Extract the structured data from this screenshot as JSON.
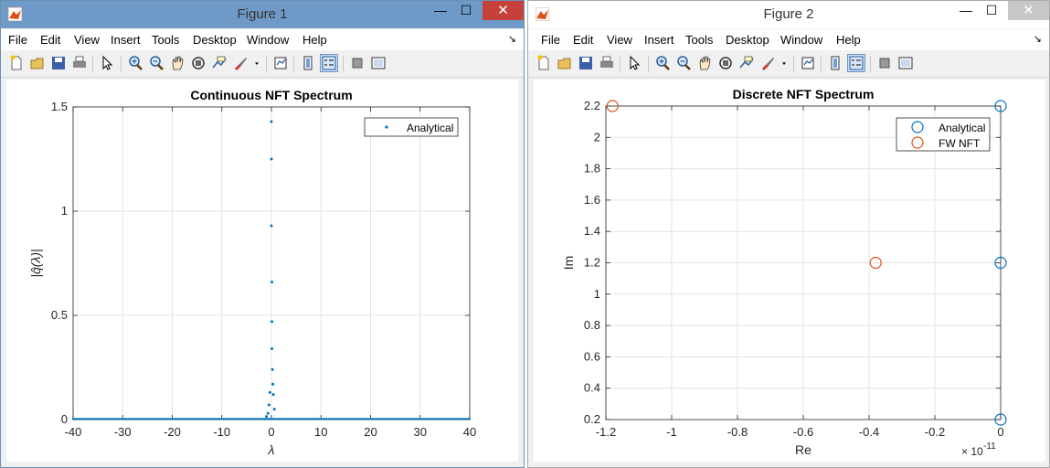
{
  "figure1": {
    "window_title": "Figure 1",
    "menu": [
      "File",
      "Edit",
      "View",
      "Insert",
      "Tools",
      "Desktop",
      "Window",
      "Help"
    ],
    "close_glyph": "✕",
    "minimize_glyph": "—",
    "maximize_glyph": "☐"
  },
  "figure2": {
    "window_title": "Figure 2",
    "menu": [
      "File",
      "Edit",
      "View",
      "Insert",
      "Tools",
      "Desktop",
      "Window",
      "Help"
    ],
    "close_glyph": "✕",
    "minimize_glyph": "—",
    "maximize_glyph": "☐"
  },
  "toolbar_icons": [
    "new-figure-icon",
    "open-file-icon",
    "save-icon",
    "print-icon",
    "pointer-icon",
    "zoom-in-icon",
    "zoom-out-icon",
    "pan-icon",
    "rotate-3d-icon",
    "data-cursor-icon",
    "brush-icon",
    "brush-dropdown-icon",
    "link-plot-icon",
    "insert-colorbar-icon",
    "insert-legend-icon",
    "hide-plot-tools-icon",
    "show-plot-tools-icon"
  ],
  "colors": {
    "blue": "#0072bd",
    "orange": "#d95319",
    "grid": "#e3e3e3"
  },
  "chart_data": [
    {
      "type": "scatter",
      "title": "Continuous NFT Spectrum",
      "xlabel": "λ",
      "ylabel": "|q̂(λ)|",
      "xlim": [
        -40,
        40
      ],
      "ylim": [
        0,
        1.5
      ],
      "xticks": [
        -40,
        -30,
        -20,
        -10,
        0,
        10,
        20,
        30,
        40
      ],
      "yticks": [
        0,
        0.5,
        1,
        1.5
      ],
      "ytick_labels": [
        "0",
        "0.5",
        "1",
        "1.5"
      ],
      "grid": true,
      "legend": {
        "position": "top-right",
        "entries": [
          "Analytical"
        ]
      },
      "series": [
        {
          "name": "Analytical",
          "marker": "dot",
          "x": [
            0.0,
            0.0,
            0.0,
            0.1,
            0.1,
            0.1,
            0.2,
            0.3,
            0.4,
            0.6,
            -0.3,
            -0.5,
            -0.7,
            -1.0
          ],
          "y": [
            1.43,
            1.25,
            0.93,
            0.66,
            0.47,
            0.34,
            0.24,
            0.17,
            0.12,
            0.05,
            0.13,
            0.07,
            0.03,
            0.015
          ],
          "baseline": {
            "y": 0.003,
            "xrange": [
              -40,
              40
            ],
            "step": 0.4
          }
        }
      ]
    },
    {
      "type": "scatter",
      "title": "Discrete NFT Spectrum",
      "xlabel": "Re",
      "ylabel": "Im",
      "xlim": [
        -1.2,
        0
      ],
      "ylim": [
        0.2,
        2.2
      ],
      "xticks": [
        -1.2,
        -1,
        -0.8,
        -0.6,
        -0.4,
        -0.2,
        0
      ],
      "xtick_labels": [
        "-1.2",
        "-1",
        "-0.8",
        "-0.6",
        "-0.4",
        "-0.2",
        "0"
      ],
      "yticks": [
        0.2,
        0.4,
        0.6,
        0.8,
        1,
        1.2,
        1.4,
        1.6,
        1.8,
        2,
        2.2
      ],
      "ytick_labels": [
        "0.2",
        "0.4",
        "0.6",
        "0.8",
        "1",
        "1.2",
        "1.4",
        "1.6",
        "1.8",
        "2",
        "2.2"
      ],
      "x_exponent": "× 10",
      "x_exponent_power": "-11",
      "grid": true,
      "legend": {
        "position": "top-right",
        "entries": [
          "Analytical",
          "FW NFT"
        ]
      },
      "series": [
        {
          "name": "Analytical",
          "marker": "circle",
          "x": [
            0,
            0,
            0
          ],
          "y": [
            2.2,
            1.2,
            0.2
          ]
        },
        {
          "name": "FW NFT",
          "marker": "circle",
          "x": [
            -1.18,
            -0.38
          ],
          "y": [
            2.2,
            1.2
          ]
        }
      ]
    }
  ]
}
